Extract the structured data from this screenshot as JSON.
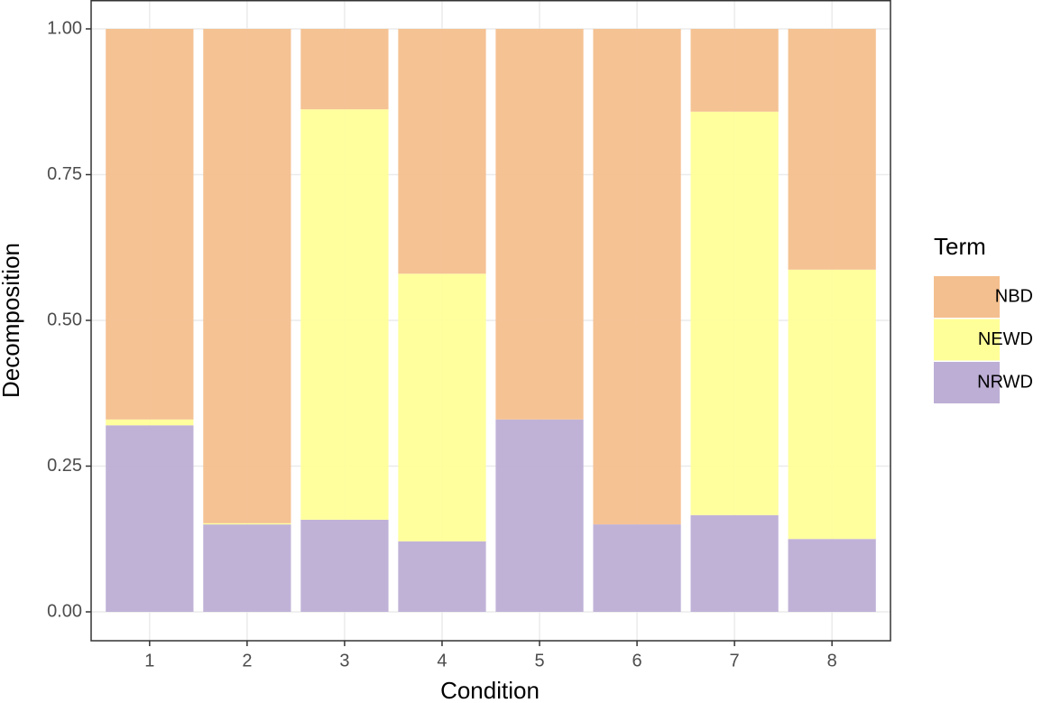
{
  "chart_data": {
    "type": "stacked-bar",
    "x_label": "Condition",
    "y_label": "Decomposition",
    "categories": [
      "1",
      "2",
      "3",
      "4",
      "5",
      "6",
      "7",
      "8"
    ],
    "legend_title": "Term",
    "series": [
      {
        "name": "NBD",
        "color": "#f4bf8e",
        "values": [
          0.67,
          0.848,
          0.138,
          0.42,
          0.67,
          0.85,
          0.142,
          0.413
        ]
      },
      {
        "name": "NEWD",
        "color": "#ffff99",
        "values": [
          0.01,
          0.002,
          0.704,
          0.459,
          0,
          0,
          0.692,
          0.462
        ]
      },
      {
        "name": "NRWD",
        "color": "#bdaed5",
        "values": [
          0.32,
          0.15,
          0.158,
          0.121,
          0.33,
          0.15,
          0.166,
          0.125
        ]
      }
    ],
    "ylim": [
      0,
      1
    ],
    "yticks": [
      {
        "value": 0,
        "label": "0.00"
      },
      {
        "value": 0.25,
        "label": "0.25"
      },
      {
        "value": 0.5,
        "label": "0.50"
      },
      {
        "value": 0.75,
        "label": "0.75"
      },
      {
        "value": 1,
        "label": "1.00"
      }
    ],
    "grid": true,
    "legend": "right"
  }
}
